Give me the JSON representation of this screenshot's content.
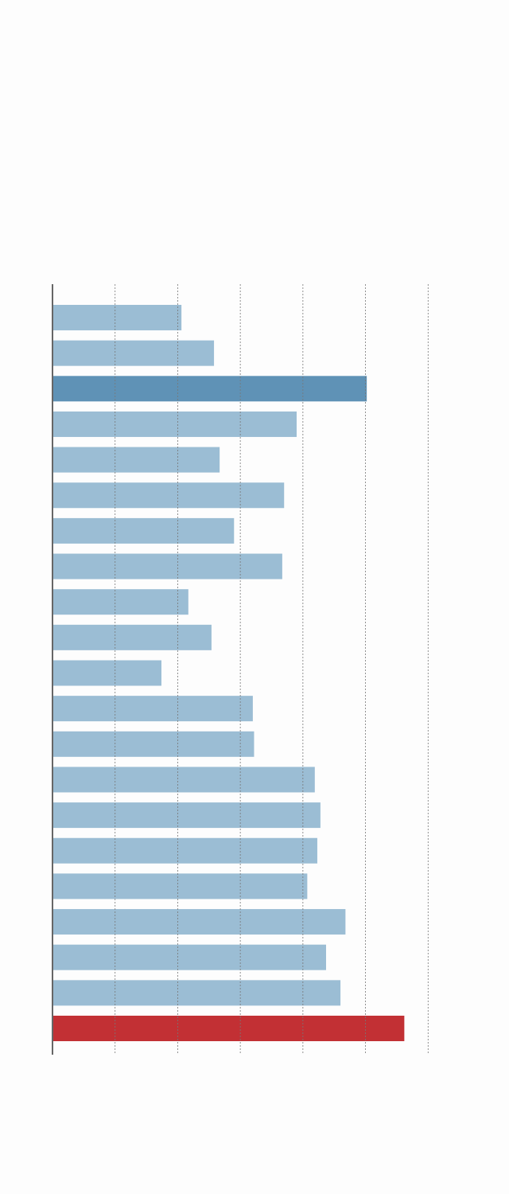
{
  "chart_data": {
    "type": "barh",
    "values": [
      20.6,
      25.8,
      50.2,
      39.0,
      26.7,
      37.0,
      29.0,
      36.7,
      21.7,
      25.4,
      17.4,
      32.0,
      32.2,
      41.9,
      42.8,
      42.3,
      40.7,
      46.8,
      43.7,
      46.0,
      56.2
    ],
    "colors": [
      "#9bbdd4",
      "#9bbdd4",
      "#5f92b6",
      "#9bbdd4",
      "#9bbdd4",
      "#9bbdd4",
      "#9bbdd4",
      "#9bbdd4",
      "#9bbdd4",
      "#9bbdd4",
      "#9bbdd4",
      "#9bbdd4",
      "#9bbdd4",
      "#9bbdd4",
      "#9bbdd4",
      "#9bbdd4",
      "#9bbdd4",
      "#9bbdd4",
      "#9bbdd4",
      "#9bbdd4",
      "#c23034"
    ],
    "xlim": [
      0,
      70
    ],
    "xticks": [
      0,
      10,
      20,
      30,
      40,
      50,
      60
    ],
    "grid": true
  }
}
